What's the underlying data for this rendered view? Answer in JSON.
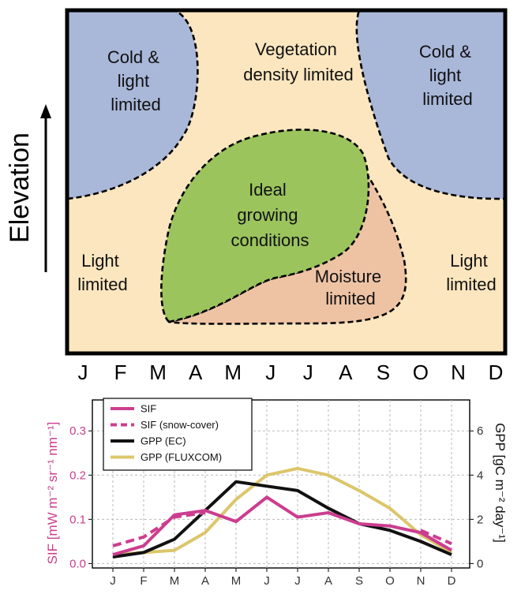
{
  "colors": {
    "background_region": "#fbe6bf",
    "cold_region": "#a9b7d9",
    "ideal_region": "#9bc45d",
    "moisture_region": "#eec3a4",
    "sif": "#cc3d8f",
    "gpp_ec": "#111111",
    "gpp_fluxcom": "#dcc66b"
  },
  "diagram": {
    "elevation_label": "Elevation",
    "months": [
      "J",
      "F",
      "M",
      "A",
      "M",
      "J",
      "J",
      "A",
      "S",
      "O",
      "N",
      "D"
    ],
    "regions": {
      "cold_left": [
        "Cold &",
        "light",
        "limited"
      ],
      "cold_right": [
        "Cold &",
        "light",
        "limited"
      ],
      "vegetation": [
        "Vegetation",
        "density limited"
      ],
      "ideal": [
        "Ideal",
        "growing",
        "conditions"
      ],
      "moisture": [
        "Moisture",
        "limited"
      ],
      "light_left": [
        "Light",
        "limited"
      ],
      "light_right": [
        "Light",
        "limited"
      ]
    }
  },
  "chart_data": {
    "type": "line",
    "categories": [
      "J",
      "F",
      "M",
      "A",
      "M",
      "J",
      "J",
      "A",
      "S",
      "O",
      "N",
      "D"
    ],
    "ylabel_left": "SIF [mW m⁻² sr⁻¹ nm⁻¹]",
    "ylabel_right": "GPP [gC m⁻² day⁻¹]",
    "ylim_left": [
      -0.01,
      0.37
    ],
    "ylim_right": [
      -0.2,
      7.4
    ],
    "yticks_left": [
      "0.0",
      "0.1",
      "0.2",
      "0.3"
    ],
    "yticks_right": [
      "0",
      "2",
      "4",
      "6"
    ],
    "grid": true,
    "legend_position": "top-left",
    "series": [
      {
        "name": "SIF",
        "axis": "left",
        "style": "solid",
        "color": "#cc3d8f",
        "values": [
          0.02,
          0.04,
          0.11,
          0.12,
          0.095,
          0.15,
          0.105,
          0.115,
          0.09,
          0.085,
          0.07,
          0.03
        ]
      },
      {
        "name": "SIF (snow-cover)",
        "axis": "left",
        "style": "dashed",
        "color": "#cc3d8f",
        "values": [
          0.04,
          0.06,
          0.105,
          0.115,
          null,
          null,
          null,
          null,
          null,
          null,
          0.075,
          0.045
        ]
      },
      {
        "name": "GPP (EC)",
        "axis": "right",
        "style": "solid",
        "color": "#111111",
        "values": [
          0.3,
          0.5,
          1.1,
          2.4,
          3.7,
          3.5,
          3.3,
          2.5,
          1.8,
          1.5,
          1.0,
          0.4
        ]
      },
      {
        "name": "GPP (FLUXCOM)",
        "axis": "right",
        "style": "solid",
        "color": "#dcc66b",
        "values": [
          0.4,
          0.5,
          0.6,
          1.4,
          2.9,
          4.0,
          4.3,
          4.0,
          3.3,
          2.5,
          1.3,
          0.5
        ]
      }
    ]
  }
}
